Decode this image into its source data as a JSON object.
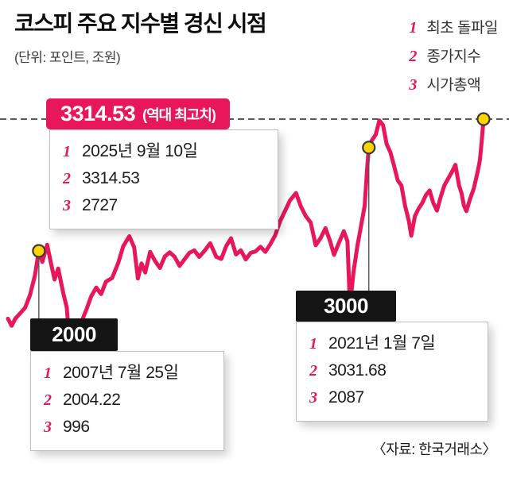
{
  "header": {
    "title": "코스피 주요 지수별 경신 시점",
    "subtitle": "(단위: 포인트, 조원)"
  },
  "legend": {
    "items": [
      {
        "num": "1",
        "label": "최초 돌파일"
      },
      {
        "num": "2",
        "label": "종가지수"
      },
      {
        "num": "3",
        "label": "시가총액"
      }
    ]
  },
  "row_numbers": [
    "1",
    "2",
    "3"
  ],
  "record_callout": {
    "value": "3314.53",
    "suffix": "(역대 최고치)"
  },
  "source": "〈자료: 한국거래소〉",
  "colors": {
    "accent": "#e8175c",
    "marker_fill": "#ffd400",
    "label_box": "#141414",
    "dashed_line": "#222222"
  },
  "chart_data": {
    "type": "line",
    "title": "코스피 주요 지수별 경신 시점",
    "unit": "포인트, 조원",
    "source": "한국거래소",
    "series_name": "코스피 지수",
    "x_range": [
      2006.3,
      2025.7
    ],
    "ylim": [
      800,
      3400
    ],
    "record_line": 3314.53,
    "x": [
      2006.3,
      2006.45,
      2006.6,
      2006.8,
      2007.0,
      2007.2,
      2007.4,
      2007.56,
      2007.7,
      2007.9,
      2008.05,
      2008.2,
      2008.35,
      2008.55,
      2008.7,
      2008.85,
      2009.0,
      2009.12,
      2009.3,
      2009.5,
      2009.7,
      2009.9,
      2010.1,
      2010.3,
      2010.55,
      2010.8,
      2011.0,
      2011.25,
      2011.45,
      2011.6,
      2011.75,
      2011.9,
      2012.1,
      2012.3,
      2012.5,
      2012.7,
      2012.9,
      2013.1,
      2013.3,
      2013.5,
      2013.7,
      2013.9,
      2014.1,
      2014.3,
      2014.55,
      2014.8,
      2015.0,
      2015.2,
      2015.4,
      2015.6,
      2015.8,
      2016.0,
      2016.2,
      2016.4,
      2016.6,
      2016.8,
      2017.0,
      2017.2,
      2017.4,
      2017.6,
      2017.8,
      2018.05,
      2018.25,
      2018.45,
      2018.65,
      2018.85,
      2019.05,
      2019.25,
      2019.45,
      2019.6,
      2019.8,
      2020.0,
      2020.15,
      2020.25,
      2020.4,
      2020.55,
      2020.7,
      2020.85,
      2020.95,
      2021.02,
      2021.15,
      2021.3,
      2021.45,
      2021.6,
      2021.75,
      2021.9,
      2022.05,
      2022.2,
      2022.35,
      2022.5,
      2022.65,
      2022.75,
      2022.9,
      2023.05,
      2023.2,
      2023.35,
      2023.5,
      2023.65,
      2023.8,
      2023.95,
      2024.1,
      2024.25,
      2024.4,
      2024.55,
      2024.7,
      2024.8,
      2024.9,
      2025.0,
      2025.15,
      2025.3,
      2025.45,
      2025.55,
      2025.63,
      2025.7
    ],
    "values": [
      1330,
      1260,
      1330,
      1385,
      1440,
      1565,
      1760,
      2004.22,
      1895,
      2065,
      1890,
      1720,
      1830,
      1590,
      1440,
      950,
      1160,
      1085,
      1300,
      1420,
      1555,
      1640,
      1575,
      1700,
      1735,
      1885,
      2050,
      2150,
      2040,
      1730,
      1880,
      1790,
      1995,
      1905,
      1835,
      1950,
      1990,
      1945,
      1855,
      1920,
      1985,
      2010,
      1945,
      2000,
      2080,
      1945,
      1925,
      2050,
      2130,
      1970,
      2010,
      1920,
      1985,
      2000,
      2045,
      1995,
      2070,
      2160,
      2300,
      2400,
      2505,
      2580,
      2445,
      2350,
      2285,
      2060,
      2130,
      2230,
      2095,
      1965,
      2085,
      2200,
      2100,
      1457,
      1800,
      2050,
      2250,
      2450,
      2820,
      3031.68,
      3105,
      3160,
      3300,
      3255,
      3065,
      2985,
      2850,
      2705,
      2655,
      2450,
      2305,
      2155,
      2350,
      2425,
      2480,
      2560,
      2605,
      2480,
      2405,
      2540,
      2655,
      2720,
      2785,
      2860,
      2655,
      2580,
      2455,
      2400,
      2520,
      2625,
      2780,
      2905,
      3105,
      3314.53
    ],
    "milestones": [
      {
        "level": "2000",
        "year": 2007.56,
        "date": "2007년 7월 25일",
        "close": 2004.22,
        "market_cap": 996
      },
      {
        "level": "3000",
        "year": 2021.02,
        "date": "2021년 1월 7일",
        "close": 3031.68,
        "market_cap": 2087
      },
      {
        "level": "3314.53",
        "year": 2025.7,
        "date": "2025년 9월 10일",
        "close": 3314.53,
        "market_cap": 2727,
        "note": "역대 최고치"
      }
    ]
  }
}
